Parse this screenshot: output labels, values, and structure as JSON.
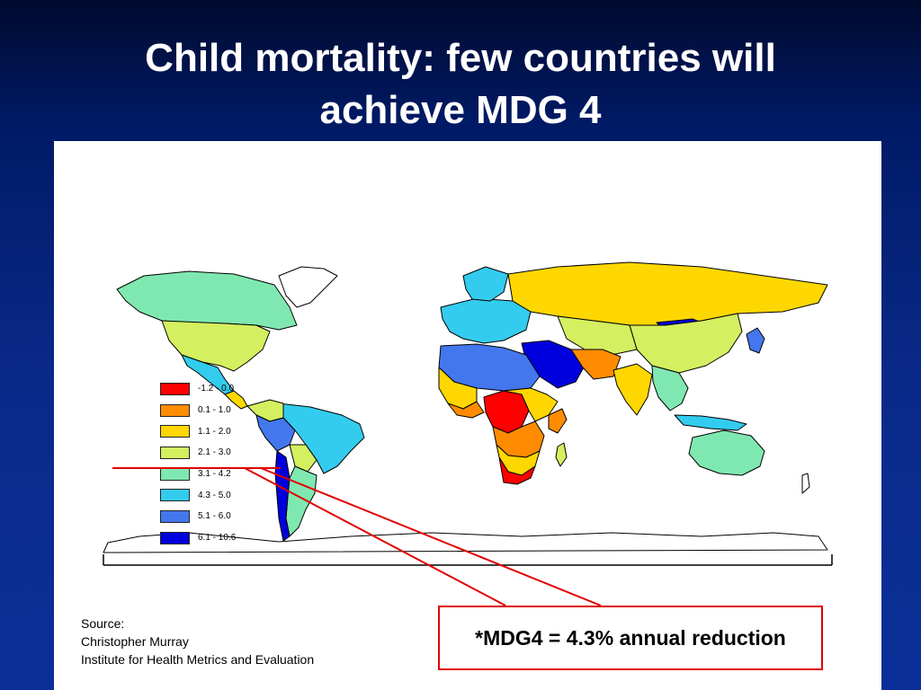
{
  "slide": {
    "title_lines": [
      "Child mortality: few countries will",
      "achieve MDG 4"
    ]
  },
  "map": {
    "legend": [
      {
        "label": "-1.2 - 0.0",
        "color": "#ff0000"
      },
      {
        "label": "0.1 - 1.0",
        "color": "#ff8c00"
      },
      {
        "label": "1.1 - 2.0",
        "color": "#ffd700"
      },
      {
        "label": "2.1 - 3.0",
        "color": "#d4f060"
      },
      {
        "label": "3.1 - 4.2",
        "color": "#7fe8b0"
      },
      {
        "label": "4.3 - 5.0",
        "color": "#33ccee"
      },
      {
        "label": "5.1 - 6.0",
        "color": "#4477ee"
      },
      {
        "label": "6.1 - 10.6",
        "color": "#0000dd"
      }
    ]
  },
  "source": {
    "lines": [
      "Source:",
      "Christopher Murray",
      "Institute for Health Metrics and Evaluation"
    ]
  },
  "callout": {
    "text": "*MDG4 = 4.3% annual reduction",
    "color": "#e00000"
  }
}
